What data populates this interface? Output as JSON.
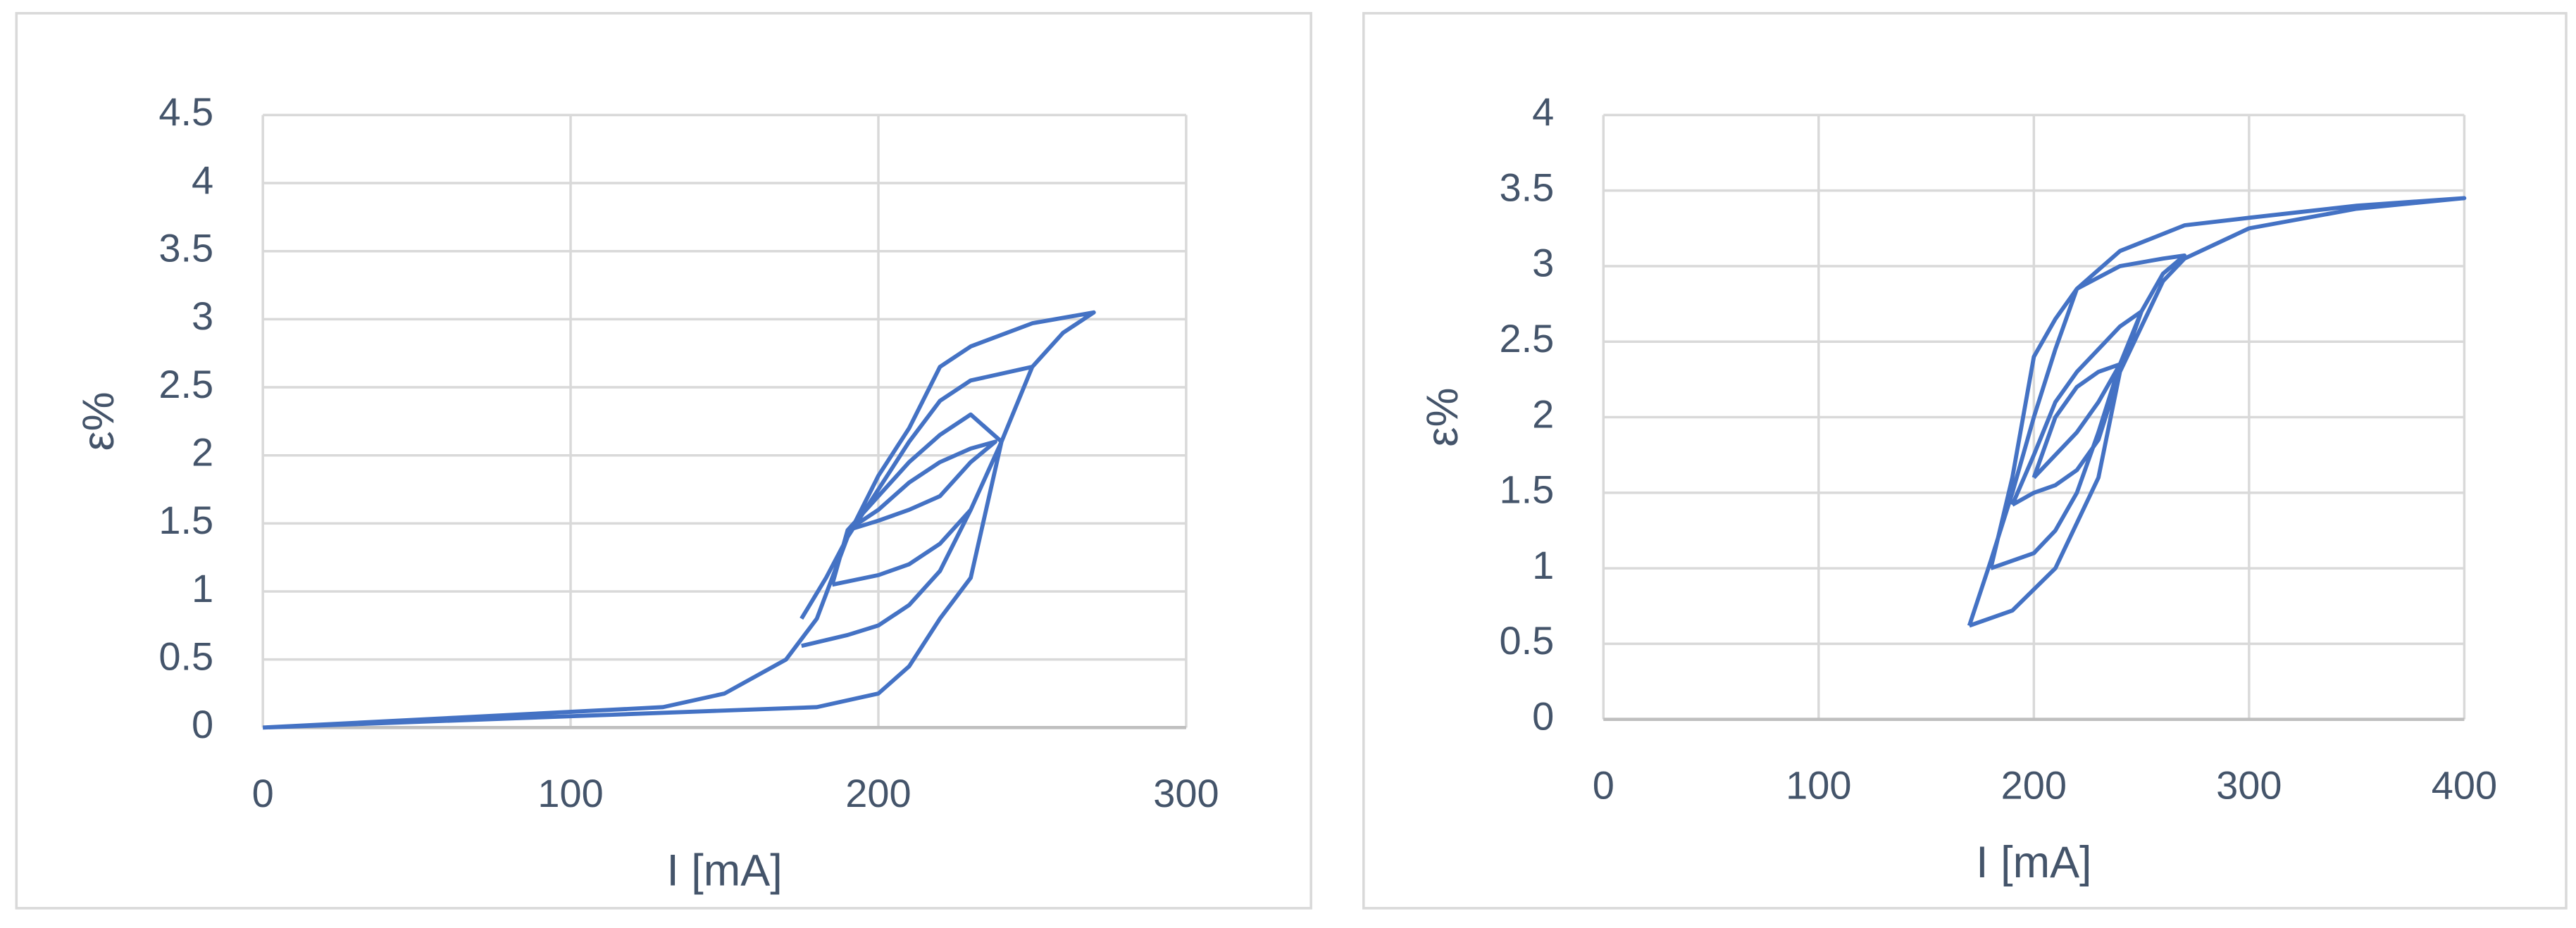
{
  "chart_data": [
    {
      "type": "line",
      "xlabel": "I [mA]",
      "ylabel": "ε%",
      "color": "#4472c4",
      "grid": true,
      "xlim": [
        0,
        300
      ],
      "xticks": [
        0,
        100,
        200,
        300
      ],
      "ylim": [
        0,
        4.5
      ],
      "yticks": [
        0,
        0.5,
        1,
        1.5,
        2,
        2.5,
        3,
        3.5,
        4,
        4.5
      ],
      "x": [
        0,
        130,
        150,
        170,
        180,
        190,
        200,
        210,
        220,
        230,
        250,
        270,
        260,
        250,
        240,
        230,
        220,
        210,
        200,
        180,
        0,
        null,
        175,
        190,
        200,
        210,
        220,
        230,
        240,
        250,
        230,
        220,
        210,
        200,
        190,
        183,
        175,
        null,
        185,
        200,
        210,
        220,
        230,
        240,
        230,
        220,
        210,
        200,
        190,
        185,
        null,
        190,
        200,
        210,
        220,
        230,
        238,
        230,
        220,
        210,
        200,
        190
      ],
      "values": [
        0,
        0.15,
        0.25,
        0.5,
        0.8,
        1.4,
        1.85,
        2.2,
        2.65,
        2.8,
        2.97,
        3.05,
        2.9,
        2.65,
        2.1,
        1.1,
        0.8,
        0.45,
        0.25,
        0.15,
        0,
        null,
        0.6,
        0.68,
        0.75,
        0.9,
        1.15,
        1.6,
        2.1,
        2.65,
        2.55,
        2.4,
        2.1,
        1.75,
        1.4,
        1.1,
        0.8,
        null,
        1.05,
        1.12,
        1.2,
        1.35,
        1.6,
        2.1,
        2.3,
        2.15,
        1.95,
        1.7,
        1.45,
        1.05,
        null,
        1.45,
        1.52,
        1.6,
        1.7,
        1.95,
        2.1,
        2.05,
        1.95,
        1.8,
        1.6,
        1.45
      ]
    },
    {
      "type": "line",
      "xlabel": "I [mA]",
      "ylabel": "ε%",
      "color": "#4472c4",
      "grid": true,
      "xlim": [
        0,
        400
      ],
      "xticks": [
        0,
        100,
        200,
        300,
        400
      ],
      "ylim": [
        0,
        4
      ],
      "yticks": [
        0,
        0.5,
        1,
        1.5,
        2,
        2.5,
        3,
        3.5,
        4
      ],
      "x": [
        170,
        180,
        190,
        200,
        210,
        220,
        240,
        270,
        300,
        350,
        400,
        350,
        300,
        270,
        260,
        250,
        240,
        230,
        220,
        210,
        190,
        170,
        null,
        180,
        200,
        210,
        220,
        230,
        240,
        250,
        260,
        270,
        260,
        240,
        220,
        210,
        200,
        190,
        180,
        null,
        190,
        200,
        210,
        220,
        230,
        240,
        250,
        260,
        250,
        240,
        230,
        220,
        210,
        200,
        190,
        null,
        200,
        210,
        220,
        230,
        240,
        230,
        220,
        210,
        200
      ],
      "values": [
        0.62,
        1.05,
        1.5,
        2.0,
        2.45,
        2.85,
        3.1,
        3.27,
        3.32,
        3.4,
        3.45,
        3.38,
        3.25,
        3.05,
        2.9,
        2.6,
        2.3,
        1.6,
        1.3,
        1.0,
        0.72,
        0.62,
        null,
        1.0,
        1.1,
        1.25,
        1.5,
        1.9,
        2.35,
        2.7,
        2.95,
        3.07,
        3.05,
        3.0,
        2.85,
        2.65,
        2.4,
        1.6,
        1.0,
        null,
        1.42,
        1.5,
        1.55,
        1.65,
        1.85,
        2.3,
        2.7,
        2.95,
        2.7,
        2.6,
        2.45,
        2.3,
        2.1,
        1.75,
        1.42,
        null,
        1.6,
        1.75,
        1.9,
        2.1,
        2.35,
        2.3,
        2.2,
        2.0,
        1.6
      ]
    }
  ]
}
